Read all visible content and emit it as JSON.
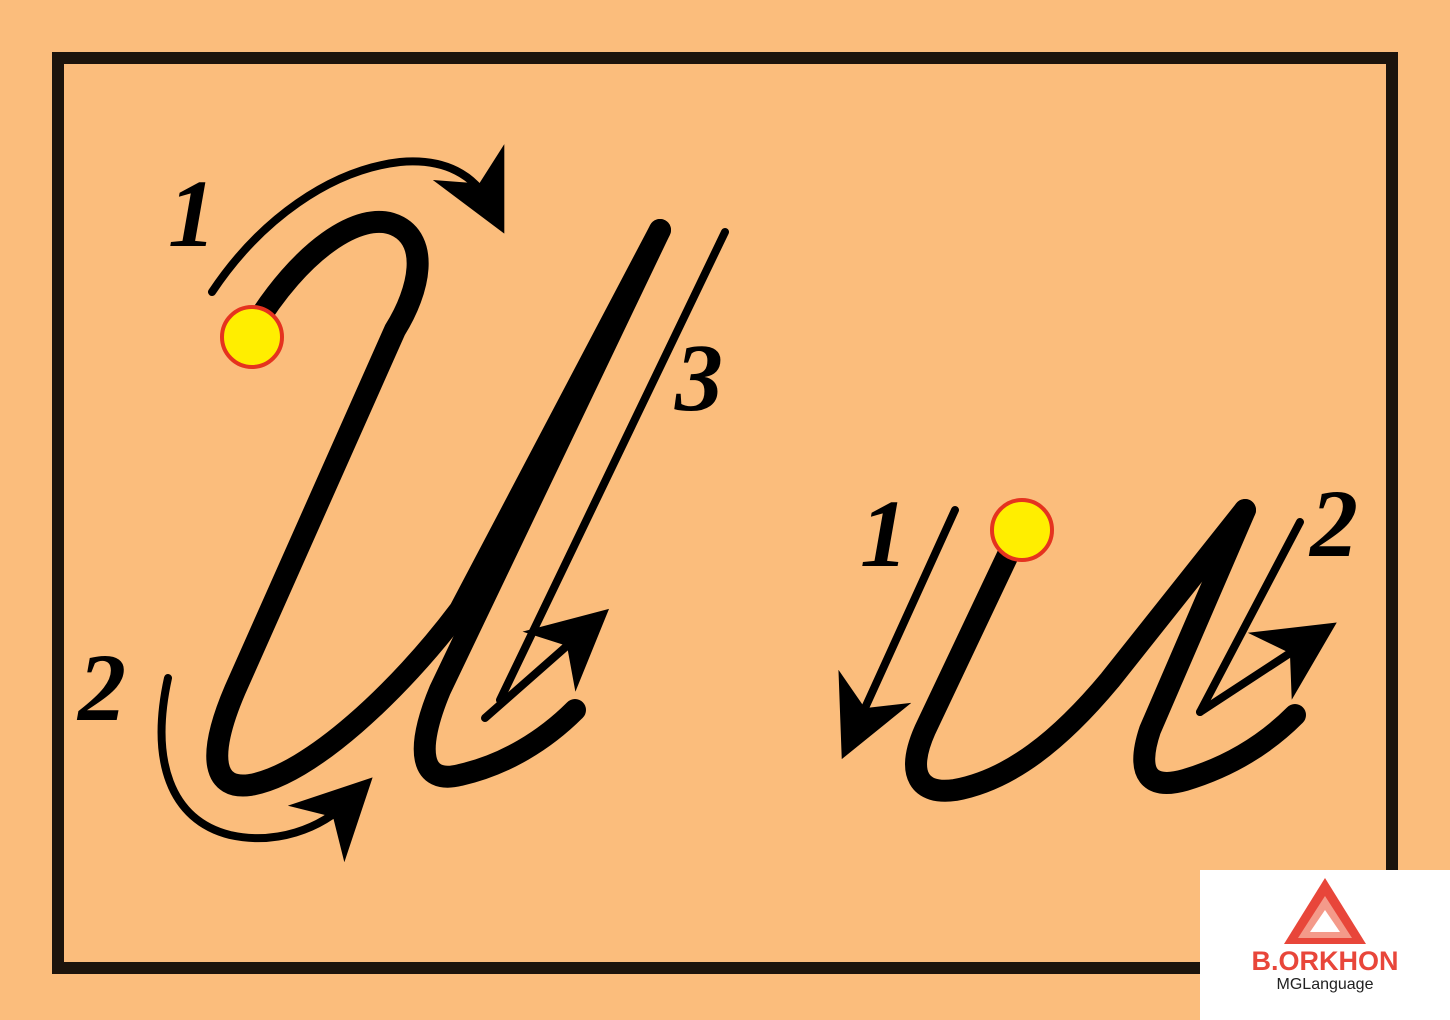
{
  "colors": {
    "background": "#fbbd7c",
    "frame": "#1c140c",
    "stroke": "#000000",
    "start_dot_fill": "#ffee00",
    "start_dot_border": "#e5331f",
    "logo_red": "#e8463a"
  },
  "uppercase": {
    "step_1": "1",
    "step_2": "2",
    "step_3": "3"
  },
  "lowercase": {
    "step_1": "1",
    "step_2": "2"
  },
  "logo": {
    "name": "B.ORKHON",
    "subtitle": "MGLanguage"
  }
}
